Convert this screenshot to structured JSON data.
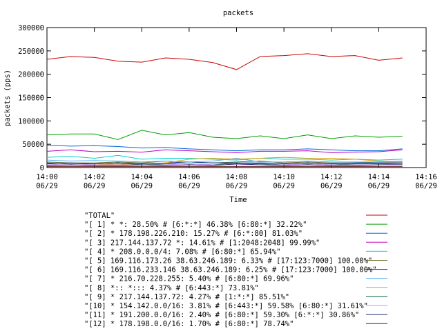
{
  "chart_data": {
    "type": "line",
    "title": "packets",
    "x_label": "Time",
    "y_label": "packets (pps)",
    "x": [
      "14:00",
      "14:01",
      "14:02",
      "14:03",
      "14:04",
      "14:05",
      "14:06",
      "14:07",
      "14:08",
      "14:09",
      "14:10",
      "14:11",
      "14:12",
      "14:13",
      "14:14",
      "14:15"
    ],
    "xlim": [
      "14:00",
      "14:16"
    ],
    "xticks": [
      {
        "value": "14:00",
        "label": "14:00 06/29"
      },
      {
        "value": "14:02",
        "label": "14:02 06/29"
      },
      {
        "value": "14:04",
        "label": "14:04 06/29"
      },
      {
        "value": "14:06",
        "label": "14:06 06/29"
      },
      {
        "value": "14:08",
        "label": "14:08 06/29"
      },
      {
        "value": "14:10",
        "label": "14:10 06/29"
      },
      {
        "value": "14:12",
        "label": "14:12 06/29"
      },
      {
        "value": "14:14",
        "label": "14:14 06/29"
      },
      {
        "value": "14:16",
        "label": "14:16 06/29"
      }
    ],
    "ylim": [
      0,
      300000
    ],
    "yticks": [
      0,
      50000,
      100000,
      150000,
      200000,
      250000,
      300000
    ],
    "grid": false,
    "series": [
      {
        "name": "\"TOTAL\"",
        "color": "#cc0000",
        "values": [
          232000,
          238000,
          236000,
          228000,
          226000,
          235000,
          232000,
          225000,
          210000,
          238000,
          240000,
          244000,
          238000,
          240000,
          230000,
          235000
        ]
      },
      {
        "name": "\"[ 1] * *: 28.50% # [6:*:*] 46.38% [6:80:*] 32.22%\"",
        "color": "#00a000",
        "values": [
          70000,
          72000,
          72000,
          60000,
          80000,
          70000,
          75000,
          65000,
          62000,
          68000,
          62000,
          70000,
          62000,
          68000,
          65000,
          67000
        ]
      },
      {
        "name": "\"[ 2] * 178.198.226.210: 15.27% # [6:*:80] 81.03%\"",
        "color": "#0066dd",
        "values": [
          48000,
          46000,
          47000,
          45000,
          42000,
          43000,
          40000,
          38000,
          36000,
          38000,
          38000,
          40000,
          38000,
          36000,
          36000,
          40000
        ]
      },
      {
        "name": "\"[ 3] 217.144.137.72 *: 14.61% # [1:2048:2048] 99.99%\"",
        "color": "#c000c0",
        "values": [
          35000,
          38000,
          34000,
          35000,
          33000,
          38000,
          36000,
          34000,
          32000,
          35000,
          35000,
          36000,
          32000,
          33000,
          34000,
          38000
        ]
      },
      {
        "name": "\"[ 4] * 208.0.0.0/4: 7.08% # [6:80:*] 65.94%\"",
        "color": "#00d0d0",
        "values": [
          22000,
          24000,
          20000,
          26000,
          18000,
          20000,
          20000,
          18000,
          16000,
          20000,
          18000,
          18000,
          16000,
          18000,
          16000,
          18000
        ]
      },
      {
        "name": "\"[ 5] 169.116.173.26 38.63.246.189: 6.33% # [17:123:7000] 100.00%\"",
        "color": "#6b6b2a",
        "values": [
          12000,
          10000,
          10000,
          12000,
          10000,
          14000,
          12000,
          10000,
          12000,
          14000,
          10000,
          12000,
          10000,
          10000,
          12000,
          12000
        ]
      },
      {
        "name": "\"[ 6] 169.116.233.146 38.63.246.189: 6.25% # [17:123:7000] 100.00%\"",
        "color": "#003090",
        "values": [
          8000,
          10000,
          8000,
          10000,
          8000,
          10000,
          12000,
          10000,
          10000,
          10000,
          8000,
          10000,
          8000,
          10000,
          10000,
          10000
        ]
      },
      {
        "name": "\"[ 7] * 216.70.228.255: 5.40% # [6:80:*] 69.96%\"",
        "color": "#4ab0f0",
        "values": [
          16000,
          14000,
          15000,
          14000,
          12000,
          14000,
          12000,
          14000,
          20000,
          12000,
          12000,
          14000,
          12000,
          12000,
          12000,
          14000
        ]
      },
      {
        "name": "\"[ 8] *:: *::: 4.37% # [6:443:*] 73.81%\"",
        "color": "#e0a000",
        "values": [
          5000,
          5000,
          6000,
          8000,
          5000,
          10000,
          18000,
          20000,
          18000,
          20000,
          22000,
          20000,
          20000,
          18000,
          14000,
          12000
        ]
      },
      {
        "name": "\"[ 9] * 217.144.137.72: 4.27% # [1:*:*] 85.51%\"",
        "color": "#006040",
        "values": [
          10000,
          8000,
          8000,
          10000,
          6000,
          8000,
          8000,
          6000,
          10000,
          8000,
          6000,
          8000,
          6000,
          8000,
          8000,
          8000
        ]
      },
      {
        "name": "\"[10] * 154.142.0.0/16: 3.81% # [6:443:*] 59.58% [6:80:*] 31.61%\"",
        "color": "#c090f0",
        "values": [
          6000,
          8000,
          6000,
          6000,
          6000,
          6000,
          8000,
          6000,
          6000,
          6000,
          6000,
          8000,
          6000,
          6000,
          6000,
          8000
        ]
      },
      {
        "name": "\"[11] * 191.200.0.0/16: 2.40% # [6:80:*] 59.30% [6:*:*] 30.86%\"",
        "color": "#203070",
        "values": [
          4000,
          6000,
          4000,
          4000,
          6000,
          4000,
          6000,
          4000,
          8000,
          6000,
          4000,
          6000,
          4000,
          4000,
          6000,
          6000
        ]
      },
      {
        "name": "\"[12] * 178.198.0.0/16: 1.70% # [6:80:*] 78.74%\"",
        "color": "#602020",
        "values": [
          2000,
          2000,
          2000,
          2000,
          2000,
          2000,
          2000,
          2000,
          2000,
          2000,
          2000,
          2000,
          2000,
          2000,
          2000,
          2000
        ]
      }
    ]
  }
}
